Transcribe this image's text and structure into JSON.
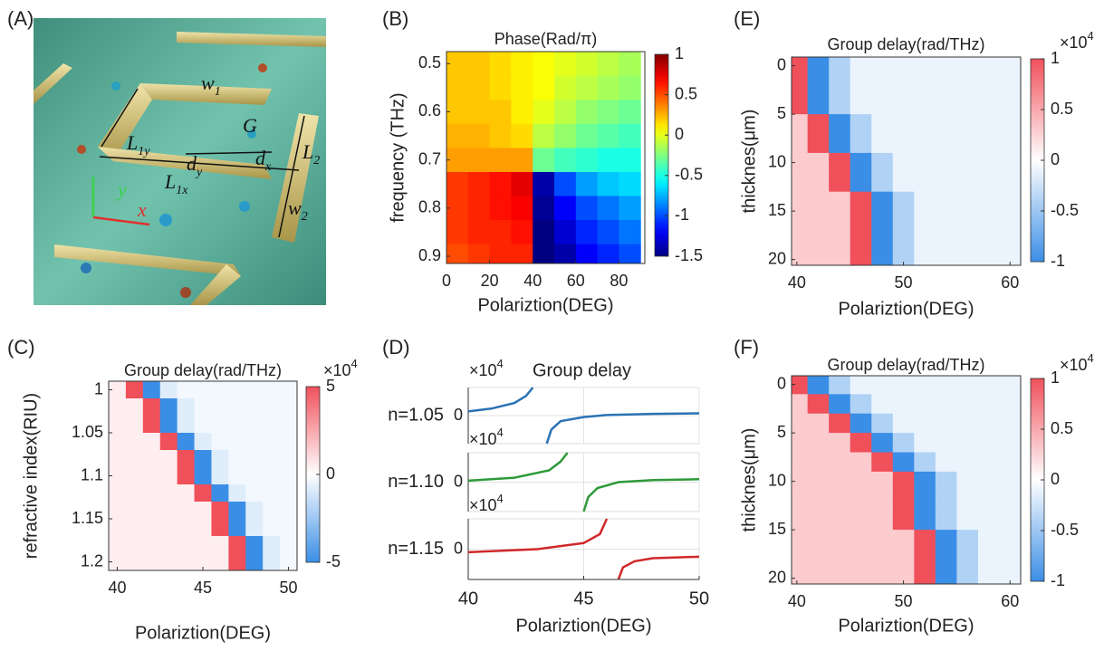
{
  "panel_labels": [
    "(A)",
    "(B)",
    "(C)",
    "(D)",
    "(E)",
    "(F)"
  ],
  "panel_a": {
    "labels": [
      {
        "text": "w",
        "sub": "1"
      },
      {
        "text": "L",
        "sub": "1y"
      },
      {
        "text": "G"
      },
      {
        "text": "d",
        "sub": "y"
      },
      {
        "text": "d",
        "sub": "x"
      },
      {
        "text": "L",
        "sub": "2"
      },
      {
        "text": "L",
        "sub": "1x"
      },
      {
        "text": "w",
        "sub": "2"
      },
      {
        "text": "y"
      },
      {
        "text": "x"
      }
    ]
  },
  "chart_data": [
    {
      "type": "heatmap",
      "title": "Phase(Rad/π)",
      "xlabel": "Polariztion(DEG)",
      "ylabel": "frequency (THz)",
      "x": [
        5,
        15,
        25,
        35,
        45,
        55,
        65,
        75,
        85
      ],
      "y": [
        0.5,
        0.55,
        0.6,
        0.65,
        0.7,
        0.75,
        0.8,
        0.85,
        0.9
      ],
      "values": [
        [
          0.2,
          0.2,
          0.15,
          0.1,
          0.05,
          0,
          -0.05,
          -0.1,
          -0.15
        ],
        [
          0.2,
          0.2,
          0.15,
          0.1,
          0.05,
          -0.05,
          -0.1,
          -0.15,
          -0.2
        ],
        [
          0.2,
          0.2,
          0.2,
          0.1,
          0,
          -0.1,
          -0.2,
          -0.25,
          -0.3
        ],
        [
          0.25,
          0.25,
          0.2,
          0.15,
          -0.1,
          -0.2,
          -0.3,
          -0.35,
          -0.4
        ],
        [
          0.3,
          0.3,
          0.3,
          0.3,
          -0.3,
          -0.4,
          -0.45,
          -0.5,
          -0.5
        ],
        [
          0.55,
          0.6,
          0.65,
          0.75,
          -1.4,
          -1.0,
          -0.8,
          -0.7,
          -0.65
        ],
        [
          0.55,
          0.6,
          0.65,
          0.7,
          -1.45,
          -1.2,
          -1.0,
          -0.9,
          -0.8
        ],
        [
          0.55,
          0.6,
          0.6,
          0.65,
          -1.5,
          -1.3,
          -1.1,
          -1.0,
          -0.9
        ],
        [
          0.5,
          0.55,
          0.6,
          0.6,
          -1.5,
          -1.4,
          -1.2,
          -1.1,
          -1.0
        ]
      ],
      "xlim": [
        0,
        92
      ],
      "ylim": [
        0.475,
        0.915
      ],
      "xticks": [
        0,
        20,
        40,
        60,
        80
      ],
      "yticks": [
        0.5,
        0.6,
        0.7,
        0.8,
        0.9
      ],
      "y_reversed": true,
      "colormap": "jet",
      "clim": [
        -1.5,
        1
      ],
      "cticks": [
        1,
        0.5,
        0,
        -0.5,
        -1,
        -1.5
      ]
    },
    {
      "type": "heatmap",
      "title": "Group delay(rad/THz)",
      "xlabel": "Polariztion(DEG)",
      "ylabel": "refractive index(RIU)",
      "x": [
        40,
        41,
        42,
        43,
        44,
        45,
        46,
        47,
        48,
        49,
        50
      ],
      "y": [
        1,
        1.02,
        1.04,
        1.06,
        1.08,
        1.1,
        1.12,
        1.14,
        1.16,
        1.18,
        1.2
      ],
      "values": [
        [
          0.5,
          5,
          -5,
          -0.8,
          -0.3,
          -0.3,
          -0.3,
          -0.3,
          -0.3,
          -0.3,
          -0.3
        ],
        [
          0.5,
          0.5,
          5,
          -5,
          -0.8,
          -0.3,
          -0.3,
          -0.3,
          -0.3,
          -0.3,
          -0.3
        ],
        [
          0.5,
          0.5,
          5,
          -5,
          -0.8,
          -0.3,
          -0.3,
          -0.3,
          -0.3,
          -0.3,
          -0.3
        ],
        [
          0.5,
          0.5,
          0.5,
          5,
          -5,
          -0.8,
          -0.3,
          -0.3,
          -0.3,
          -0.3,
          -0.3
        ],
        [
          0.5,
          0.5,
          0.5,
          0.5,
          5,
          -5,
          -0.8,
          -0.3,
          -0.3,
          -0.3,
          -0.3
        ],
        [
          0.5,
          0.5,
          0.5,
          0.5,
          5,
          -5,
          -0.8,
          -0.3,
          -0.3,
          -0.3,
          -0.3
        ],
        [
          0.5,
          0.5,
          0.5,
          0.5,
          0.5,
          5,
          -5,
          -0.8,
          -0.3,
          -0.3,
          -0.3
        ],
        [
          0.5,
          0.5,
          0.5,
          0.5,
          0.5,
          0.5,
          5,
          -5,
          -0.8,
          -0.3,
          -0.3
        ],
        [
          0.5,
          0.5,
          0.5,
          0.5,
          0.5,
          0.5,
          5,
          -5,
          -0.8,
          -0.3,
          -0.3
        ],
        [
          0.5,
          0.5,
          0.5,
          0.5,
          0.5,
          0.5,
          0.5,
          5,
          -5,
          -0.8,
          -0.3
        ],
        [
          0.5,
          0.5,
          0.5,
          0.5,
          0.5,
          0.5,
          0.5,
          5,
          -5,
          -0.8,
          -0.3
        ]
      ],
      "xlim": [
        39.5,
        50.5
      ],
      "ylim": [
        0.99,
        1.21
      ],
      "xticks": [
        40,
        45,
        50
      ],
      "yticks": [
        1,
        1.05,
        1.1,
        1.15,
        1.2
      ],
      "y_reversed": true,
      "colormap": "bwr",
      "clim": [
        -5,
        5
      ],
      "cticks": [
        5,
        0,
        -5
      ],
      "multiplier": "×10",
      "exponent": "4"
    },
    {
      "type": "line",
      "title": "Group delay",
      "xlabel": "Polariztion(DEG)",
      "xlim": [
        40,
        50
      ],
      "xticks": [
        40,
        45,
        50
      ],
      "multiplier": "×10",
      "exponent": "4",
      "grid": true,
      "series": [
        {
          "name": "n=1.05",
          "color": "#2a72b5",
          "x": [
            40,
            41,
            42,
            42.5,
            42.8,
            null,
            43.4,
            43.6,
            44,
            45,
            46,
            48,
            50
          ],
          "values": [
            0.15,
            0.25,
            0.45,
            0.7,
            1,
            null,
            -1,
            -0.5,
            -0.2,
            -0.05,
            0.02,
            0.06,
            0.08
          ],
          "ylim": [
            -1,
            1
          ],
          "yticks": [
            0
          ]
        },
        {
          "name": "n=1.10",
          "color": "#2e9a3a",
          "x": [
            40,
            42,
            43.5,
            44,
            44.3,
            null,
            45,
            45.2,
            45.6,
            46.5,
            48,
            50
          ],
          "values": [
            0.05,
            0.15,
            0.4,
            0.7,
            1,
            null,
            -1,
            -0.5,
            -0.2,
            0,
            0.07,
            0.1
          ],
          "ylim": [
            -1,
            1
          ],
          "yticks": [
            0
          ]
        },
        {
          "name": "n=1.15",
          "color": "#d0282a",
          "x": [
            40,
            43,
            45,
            45.7,
            46,
            null,
            46.5,
            46.7,
            47.2,
            48,
            50
          ],
          "values": [
            -0.1,
            0,
            0.2,
            0.5,
            1,
            null,
            -1,
            -0.6,
            -0.4,
            -0.3,
            -0.25
          ],
          "ylim": [
            -1,
            1
          ],
          "yticks": [
            0
          ]
        }
      ]
    },
    {
      "type": "heatmap",
      "title": "Group delay(rad/THz)",
      "xlabel": "Polariztion(DEG)",
      "ylabel": "thicknes(μm)",
      "x": [
        40,
        42,
        44,
        46,
        48,
        50,
        52,
        54,
        56,
        58,
        60
      ],
      "y": [
        0,
        2,
        4,
        6,
        8,
        10,
        12,
        14,
        16,
        18,
        20
      ],
      "values": [
        [
          1,
          -1,
          -0.4,
          -0.1,
          -0.1,
          -0.1,
          -0.1,
          -0.1,
          -0.1,
          -0.1,
          -0.1
        ],
        [
          1,
          -1,
          -0.4,
          -0.1,
          -0.1,
          -0.1,
          -0.1,
          -0.1,
          -0.1,
          -0.1,
          -0.1
        ],
        [
          1,
          -1,
          -0.4,
          -0.1,
          -0.1,
          -0.1,
          -0.1,
          -0.1,
          -0.1,
          -0.1,
          -0.1
        ],
        [
          0.3,
          1,
          -1,
          -0.4,
          -0.1,
          -0.1,
          -0.1,
          -0.1,
          -0.1,
          -0.1,
          -0.1
        ],
        [
          0.3,
          1,
          -1,
          -0.4,
          -0.1,
          -0.1,
          -0.1,
          -0.1,
          -0.1,
          -0.1,
          -0.1
        ],
        [
          0.3,
          0.3,
          1,
          -1,
          -0.4,
          -0.1,
          -0.1,
          -0.1,
          -0.1,
          -0.1,
          -0.1
        ],
        [
          0.3,
          0.3,
          1,
          -1,
          -0.4,
          -0.1,
          -0.1,
          -0.1,
          -0.1,
          -0.1,
          -0.1
        ],
        [
          0.3,
          0.3,
          0.3,
          1,
          -1,
          -0.4,
          -0.1,
          -0.1,
          -0.1,
          -0.1,
          -0.1
        ],
        [
          0.3,
          0.3,
          0.3,
          1,
          -1,
          -0.4,
          -0.1,
          -0.1,
          -0.1,
          -0.1,
          -0.1
        ],
        [
          0.3,
          0.3,
          0.3,
          1,
          -1,
          -0.4,
          -0.1,
          -0.1,
          -0.1,
          -0.1,
          -0.1
        ],
        [
          0.3,
          0.3,
          0.3,
          1,
          -1,
          -0.4,
          -0.1,
          -0.1,
          -0.1,
          -0.1,
          -0.1
        ]
      ],
      "xlim": [
        39.5,
        61
      ],
      "ylim": [
        -0.9,
        20.6
      ],
      "xticks": [
        40,
        50,
        60
      ],
      "yticks": [
        0,
        5,
        10,
        15,
        20
      ],
      "y_reversed": true,
      "colormap": "bwr",
      "clim": [
        -1,
        1
      ],
      "cticks": [
        1,
        0.5,
        0,
        -0.5,
        -1
      ],
      "multiplier": "×10",
      "exponent": "4"
    },
    {
      "type": "heatmap",
      "title": "Group delay(rad/THz)",
      "xlabel": "Polariztion(DEG)",
      "ylabel": "thicknes(μm)",
      "x": [
        40,
        42,
        44,
        46,
        48,
        50,
        52,
        54,
        56,
        58,
        60
      ],
      "y": [
        0,
        2,
        4,
        6,
        8,
        10,
        12,
        14,
        16,
        18,
        20
      ],
      "values": [
        [
          1,
          -1,
          -0.4,
          -0.1,
          -0.1,
          -0.1,
          -0.1,
          -0.1,
          -0.1,
          -0.1,
          -0.1
        ],
        [
          0.3,
          1,
          -1,
          -0.4,
          -0.1,
          -0.1,
          -0.1,
          -0.1,
          -0.1,
          -0.1,
          -0.1
        ],
        [
          0.3,
          0.3,
          1,
          -1,
          -0.4,
          -0.1,
          -0.1,
          -0.1,
          -0.1,
          -0.1,
          -0.1
        ],
        [
          0.3,
          0.3,
          0.3,
          1,
          -1,
          -0.4,
          -0.1,
          -0.1,
          -0.1,
          -0.1,
          -0.1
        ],
        [
          0.3,
          0.3,
          0.3,
          0.3,
          1,
          -1,
          -0.4,
          -0.1,
          -0.1,
          -0.1,
          -0.1
        ],
        [
          0.3,
          0.3,
          0.3,
          0.3,
          0.3,
          1,
          -1,
          -0.4,
          -0.1,
          -0.1,
          -0.1
        ],
        [
          0.3,
          0.3,
          0.3,
          0.3,
          0.3,
          1,
          -1,
          -0.4,
          -0.1,
          -0.1,
          -0.1
        ],
        [
          0.3,
          0.3,
          0.3,
          0.3,
          0.3,
          1,
          -1,
          -0.4,
          -0.1,
          -0.1,
          -0.1
        ],
        [
          0.3,
          0.3,
          0.3,
          0.3,
          0.3,
          0.3,
          1,
          -1,
          -0.4,
          -0.1,
          -0.1
        ],
        [
          0.3,
          0.3,
          0.3,
          0.3,
          0.3,
          0.3,
          1,
          -1,
          -0.4,
          -0.1,
          -0.1
        ],
        [
          0.3,
          0.3,
          0.3,
          0.3,
          0.3,
          0.3,
          1,
          -1,
          -0.4,
          -0.1,
          -0.1
        ]
      ],
      "xlim": [
        39.5,
        61
      ],
      "ylim": [
        -0.9,
        20.6
      ],
      "xticks": [
        40,
        50,
        60
      ],
      "yticks": [
        0,
        5,
        10,
        15,
        20
      ],
      "y_reversed": true,
      "colormap": "bwr",
      "clim": [
        -1,
        1
      ],
      "cticks": [
        1,
        0.5,
        0,
        -0.5,
        -1
      ],
      "multiplier": "×10",
      "exponent": "4"
    }
  ]
}
